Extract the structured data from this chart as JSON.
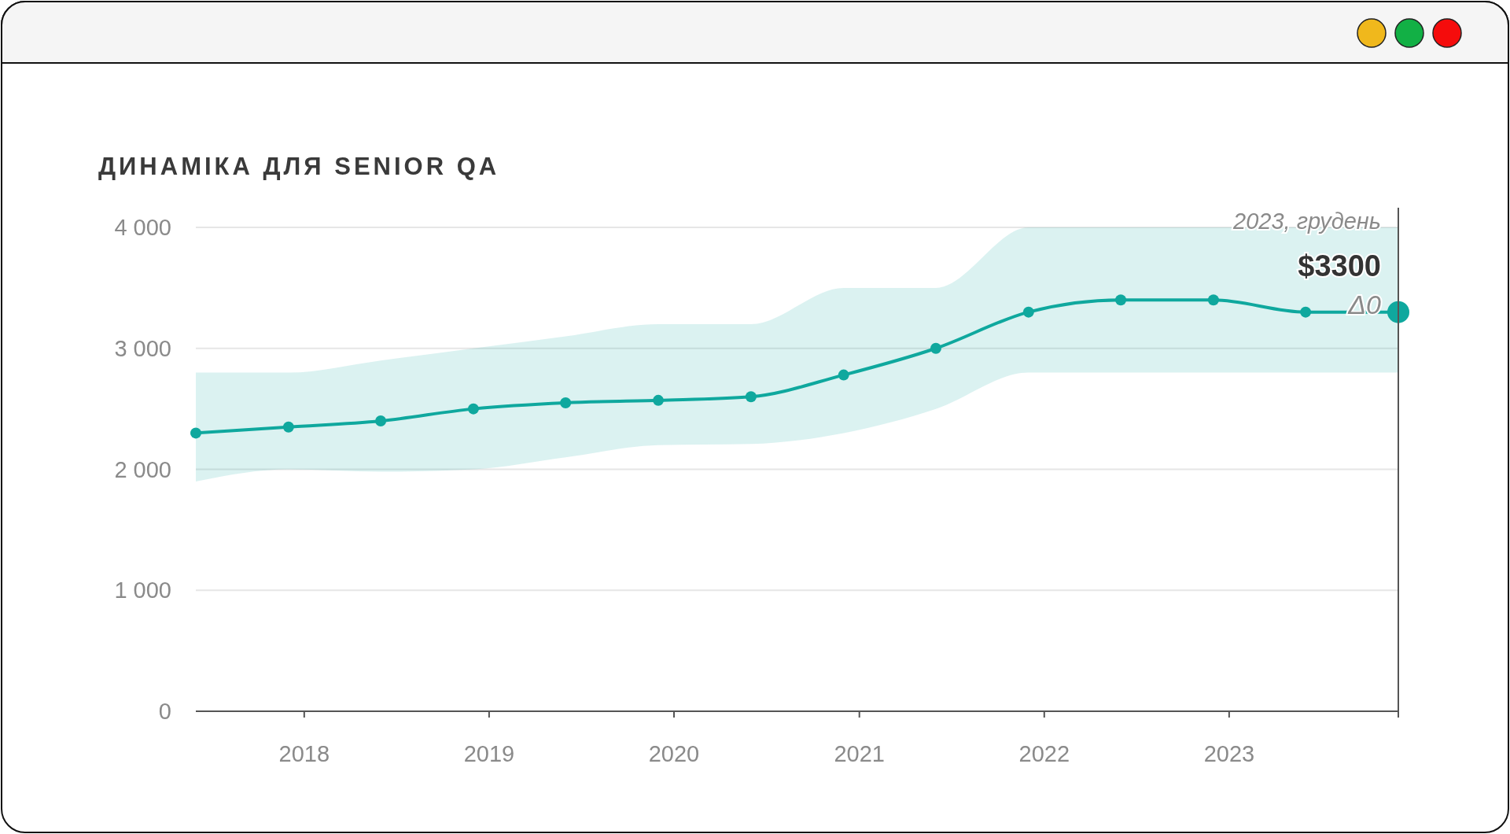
{
  "chart_data": {
    "type": "line",
    "title": "ДИНАМІКА ДЛЯ SENIOR QA",
    "x": [
      "2017-06",
      "2017-12",
      "2018-06",
      "2018-12",
      "2019-06",
      "2019-12",
      "2020-06",
      "2020-12",
      "2021-06",
      "2021-12",
      "2022-06",
      "2022-12",
      "2023-06",
      "2023-12"
    ],
    "series": [
      {
        "color": "#0fa89e",
        "values": [
          2300,
          2350,
          2400,
          2500,
          2550,
          2570,
          2600,
          2780,
          3000,
          3300,
          3400,
          3400,
          3300,
          3300
        ],
        "lower": [
          1900,
          2000,
          1980,
          2000,
          2100,
          2200,
          2210,
          2300,
          2500,
          2800,
          2800,
          2800,
          2800,
          2800
        ],
        "upper": [
          2800,
          2800,
          2900,
          3000,
          3100,
          3200,
          3200,
          3500,
          3500,
          4000,
          4000,
          4000,
          4000,
          4000
        ]
      }
    ],
    "xlim": [
      "2017-06",
      "2023-12"
    ],
    "xticks": [
      {
        "value": "2018-01",
        "label": "2018"
      },
      {
        "value": "2019-01",
        "label": "2019"
      },
      {
        "value": "2020-01",
        "label": "2020"
      },
      {
        "value": "2021-01",
        "label": "2021"
      },
      {
        "value": "2022-01",
        "label": "2022"
      },
      {
        "value": "2023-01",
        "label": "2023"
      }
    ],
    "ylim": [
      0,
      4000
    ],
    "yticks": [
      {
        "value": 0,
        "label": "0"
      },
      {
        "value": 1000,
        "label": "1 000"
      },
      {
        "value": 2000,
        "label": "2 000"
      },
      {
        "value": 3000,
        "label": "3 000"
      },
      {
        "value": 4000,
        "label": "4 000"
      }
    ],
    "grid": "y",
    "marker": "circle",
    "line_style": "solid",
    "annotations": [
      "2023, грудень",
      "$3300",
      "Δ0"
    ]
  }
}
